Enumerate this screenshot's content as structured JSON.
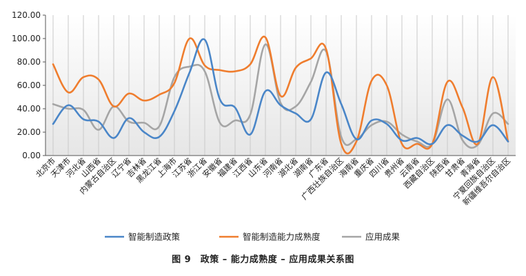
{
  "figure": {
    "caption": "图 9　政策 – 能力成熟度 – 应用成果关系图"
  },
  "chart_data": {
    "type": "line",
    "title": "",
    "xlabel": "",
    "ylabel": "",
    "ylim": [
      0,
      120
    ],
    "yticks": [
      "0.00",
      "20.00",
      "40.00",
      "60.00",
      "80.00",
      "100.00",
      "120.00"
    ],
    "grid": "vertical",
    "legend_position": "bottom",
    "categories": [
      "北京市",
      "天津市",
      "河北省",
      "山西省",
      "内蒙古自治区",
      "辽宁省",
      "吉林省",
      "黑龙江省",
      "上海市",
      "江苏省",
      "浙江省",
      "安徽省",
      "福建省",
      "江西省",
      "山东省",
      "河南省",
      "湖北省",
      "湖南省",
      "广东省",
      "广西壮族自治区",
      "海南省",
      "重庆省",
      "四川省",
      "贵州省",
      "云南省",
      "西藏自治区",
      "陕西省",
      "甘肃省",
      "青海省",
      "宁夏回族自治区",
      "新疆维吾尔自治区"
    ],
    "series": [
      {
        "name": "智能制造政策",
        "color": "#4a86c8",
        "values": [
          27,
          43,
          31,
          29,
          15,
          32,
          20,
          16,
          38,
          71,
          99,
          48,
          41,
          18,
          55,
          43,
          36,
          31,
          71,
          44,
          14,
          30,
          27,
          13,
          15,
          10,
          26,
          17,
          12,
          26,
          12
        ]
      },
      {
        "name": "智能制造能力成熟度",
        "color": "#ef7d2e",
        "values": [
          78,
          54,
          67,
          65,
          42,
          53,
          47,
          52,
          62,
          100,
          77,
          73,
          72,
          78,
          101,
          51,
          75,
          83,
          91,
          10,
          12,
          64,
          60,
          10,
          10,
          10,
          63,
          41,
          10,
          67,
          12
        ]
      },
      {
        "name": "应用成果",
        "color": "#a5a5a5",
        "values": [
          44,
          40,
          39,
          22,
          42,
          29,
          28,
          25,
          67,
          76,
          72,
          28,
          30,
          35,
          95,
          45,
          42,
          63,
          89,
          16,
          14,
          26,
          29,
          18,
          12,
          10,
          48,
          13,
          9,
          36,
          27
        ]
      }
    ]
  }
}
